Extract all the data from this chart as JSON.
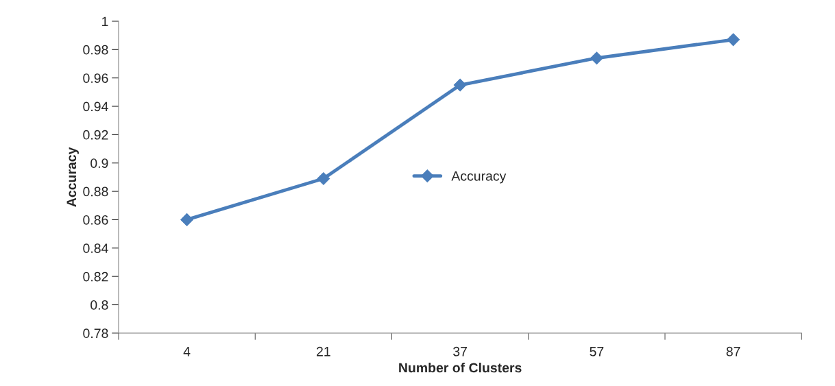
{
  "chart_data": {
    "type": "line",
    "xlabel": "Number of Clusters",
    "ylabel": "Accuracy",
    "categories": [
      "4",
      "21",
      "37",
      "57",
      "87"
    ],
    "series": [
      {
        "name": "Accuracy",
        "color": "#4a7ebb",
        "values": [
          0.86,
          0.889,
          0.955,
          0.974,
          0.987
        ]
      }
    ],
    "ylim": [
      0.78,
      1
    ],
    "yticks": [
      0.78,
      0.8,
      0.82,
      0.84,
      0.86,
      0.88,
      0.9,
      0.92,
      0.94,
      0.96,
      0.98,
      1
    ],
    "grid": false,
    "legend": "center",
    "marker": "diamond",
    "line_style": "solid"
  }
}
